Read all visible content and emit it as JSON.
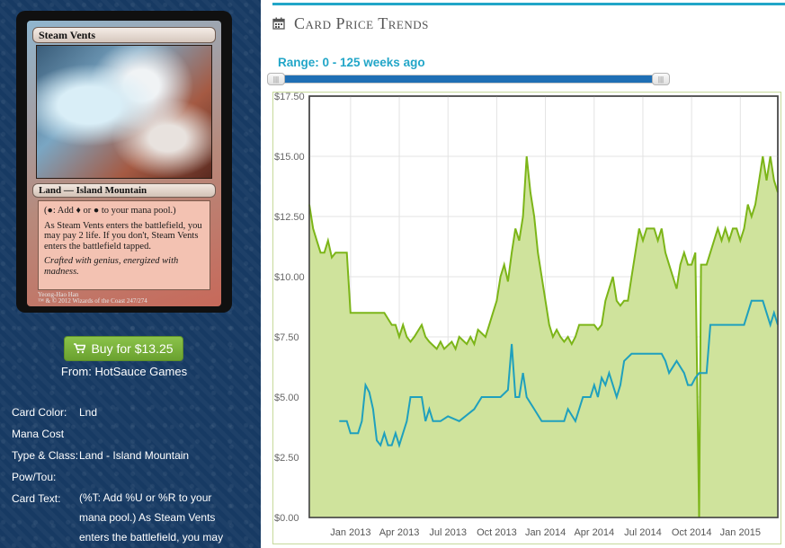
{
  "card": {
    "name": "Steam Vents",
    "type_line": "Land — Island Mountain",
    "rules_text": "(●: Add ♦ or ● to your mana pool.)",
    "rules_text_2": "As Steam Vents enters the battlefield, you may pay 2 life. If you don't, Steam Vents enters the battlefield tapped.",
    "flavor": "Crafted with genius, energized with madness.",
    "artist": "Yeong-Hao Han",
    "footer": "™ & © 2012 Wizards of the Coast  247/274"
  },
  "buy": {
    "label": "Buy for $13.25",
    "from": "From: HotSauce Games",
    "icon": "shopping-cart-icon"
  },
  "details": [
    {
      "label": "Card Color:",
      "value": "Lnd"
    },
    {
      "label": "Mana Cost",
      "value": ""
    },
    {
      "label": "Type & Class:",
      "value": "Land - Island Mountain"
    },
    {
      "label": "Pow/Tou:",
      "value": ""
    },
    {
      "label": "Card Text:",
      "value": "(%T: Add %U or %R to your mana pool.) As Steam Vents enters the battlefield, you may"
    }
  ],
  "section": {
    "title": "Card Price Trends",
    "icon": "calendar-icon"
  },
  "range": {
    "label": "Range: 0 - 125 weeks ago",
    "min": 0,
    "max": 125
  },
  "colors": {
    "accent": "#22a6c8",
    "green_line": "#7cb518",
    "green_fill": "#cfe39c",
    "blue_line": "#1fa0bd",
    "button": "#7ab53a",
    "panel": "#173a63"
  },
  "chart_data": {
    "type": "area",
    "xlabels": [
      "Jan 2013",
      "Apr 2013",
      "Jul 2013",
      "Oct 2013",
      "Jan 2014",
      "Apr 2014",
      "Jul 2014",
      "Oct 2014",
      "Jan 2015"
    ],
    "yticks": [
      "$17.50",
      "$15.00",
      "$12.50",
      "$10.00",
      "$7.50",
      "$5.00",
      "$2.50",
      "$0.00"
    ],
    "ylim": [
      0,
      17.5
    ],
    "xlim": [
      0,
      125
    ],
    "grid": true,
    "series": [
      {
        "points": [
          [
            0,
            13.0
          ],
          [
            1,
            12.0
          ],
          [
            2,
            11.5
          ],
          [
            3,
            11.0
          ],
          [
            4,
            11.0
          ],
          [
            5,
            11.5
          ],
          [
            6,
            10.8
          ],
          [
            7,
            11.0
          ],
          [
            8,
            11.0
          ],
          [
            9,
            11.0
          ],
          [
            10,
            11.0
          ],
          [
            11,
            8.5
          ],
          [
            14,
            8.5
          ],
          [
            17,
            8.5
          ],
          [
            20,
            8.5
          ],
          [
            22,
            8.0
          ],
          [
            23,
            8.0
          ],
          [
            24,
            7.5
          ],
          [
            25,
            8.0
          ],
          [
            26,
            7.5
          ],
          [
            27,
            7.3
          ],
          [
            28,
            7.5
          ],
          [
            30,
            8.0
          ],
          [
            31,
            7.5
          ],
          [
            32,
            7.3
          ],
          [
            34,
            7.0
          ],
          [
            35,
            7.3
          ],
          [
            36,
            7.0
          ],
          [
            38,
            7.3
          ],
          [
            39,
            7.0
          ],
          [
            40,
            7.5
          ],
          [
            42,
            7.2
          ],
          [
            43,
            7.5
          ],
          [
            44,
            7.2
          ],
          [
            45,
            7.8
          ],
          [
            47,
            7.5
          ],
          [
            48,
            8.0
          ],
          [
            49,
            8.5
          ],
          [
            50,
            9.0
          ],
          [
            51,
            10.0
          ],
          [
            52,
            10.5
          ],
          [
            53,
            9.8
          ],
          [
            54,
            11.0
          ],
          [
            55,
            12.0
          ],
          [
            56,
            11.5
          ],
          [
            57,
            12.5
          ],
          [
            58,
            15.0
          ],
          [
            59,
            13.5
          ],
          [
            60,
            12.5
          ],
          [
            61,
            11.0
          ],
          [
            62,
            10.0
          ],
          [
            63,
            9.0
          ],
          [
            64,
            8.0
          ],
          [
            65,
            7.5
          ],
          [
            66,
            7.8
          ],
          [
            67,
            7.5
          ],
          [
            68,
            7.3
          ],
          [
            69,
            7.5
          ],
          [
            70,
            7.2
          ],
          [
            71,
            7.5
          ],
          [
            72,
            8.0
          ],
          [
            74,
            8.0
          ],
          [
            76,
            8.0
          ],
          [
            77,
            7.8
          ],
          [
            78,
            8.0
          ],
          [
            79,
            9.0
          ],
          [
            80,
            9.5
          ],
          [
            81,
            10.0
          ],
          [
            82,
            9.0
          ],
          [
            83,
            8.8
          ],
          [
            84,
            9.0
          ],
          [
            85,
            9.0
          ],
          [
            86,
            10.0
          ],
          [
            87,
            11.0
          ],
          [
            88,
            12.0
          ],
          [
            89,
            11.5
          ],
          [
            90,
            12.0
          ],
          [
            92,
            12.0
          ],
          [
            93,
            11.5
          ],
          [
            94,
            12.0
          ],
          [
            95,
            11.0
          ],
          [
            96,
            10.5
          ],
          [
            97,
            10.0
          ],
          [
            98,
            9.5
          ],
          [
            99,
            10.5
          ],
          [
            100,
            11.0
          ],
          [
            101,
            10.5
          ],
          [
            102,
            10.5
          ],
          [
            103,
            11.0
          ],
          [
            104,
            0.0
          ],
          [
            104.5,
            10.5
          ],
          [
            106,
            10.5
          ],
          [
            108,
            11.5
          ],
          [
            109,
            12.0
          ],
          [
            110,
            11.5
          ],
          [
            111,
            12.0
          ],
          [
            112,
            11.5
          ],
          [
            113,
            12.0
          ],
          [
            114,
            12.0
          ],
          [
            115,
            11.5
          ],
          [
            116,
            12.0
          ],
          [
            117,
            13.0
          ],
          [
            118,
            12.5
          ],
          [
            119,
            13.0
          ],
          [
            120,
            14.0
          ],
          [
            121,
            15.0
          ],
          [
            122,
            14.0
          ],
          [
            123,
            15.0
          ],
          [
            124,
            14.0
          ],
          [
            125,
            13.5
          ]
        ]
      },
      {
        "points": [
          [
            8,
            4.0
          ],
          [
            10,
            4.0
          ],
          [
            11,
            3.5
          ],
          [
            13,
            3.5
          ],
          [
            14,
            4.0
          ],
          [
            15,
            5.5
          ],
          [
            16,
            5.2
          ],
          [
            17,
            4.5
          ],
          [
            18,
            3.2
          ],
          [
            19,
            3.0
          ],
          [
            20,
            3.5
          ],
          [
            21,
            3.0
          ],
          [
            22,
            3.0
          ],
          [
            23,
            3.5
          ],
          [
            24,
            3.0
          ],
          [
            26,
            4.0
          ],
          [
            27,
            5.0
          ],
          [
            30,
            5.0
          ],
          [
            31,
            4.0
          ],
          [
            32,
            4.5
          ],
          [
            33,
            4.0
          ],
          [
            35,
            4.0
          ],
          [
            37,
            4.2
          ],
          [
            40,
            4.0
          ],
          [
            44,
            4.5
          ],
          [
            46,
            5.0
          ],
          [
            49,
            5.0
          ],
          [
            51,
            5.0
          ],
          [
            53,
            5.3
          ],
          [
            54,
            7.2
          ],
          [
            55,
            5.0
          ],
          [
            56,
            5.0
          ],
          [
            57,
            6.0
          ],
          [
            58,
            5.0
          ],
          [
            60,
            4.5
          ],
          [
            62,
            4.0
          ],
          [
            64,
            4.0
          ],
          [
            66,
            4.0
          ],
          [
            68,
            4.0
          ],
          [
            69,
            4.5
          ],
          [
            71,
            4.0
          ],
          [
            73,
            5.0
          ],
          [
            75,
            5.0
          ],
          [
            76,
            5.5
          ],
          [
            77,
            5.0
          ],
          [
            78,
            5.8
          ],
          [
            79,
            5.5
          ],
          [
            80,
            6.0
          ],
          [
            82,
            5.0
          ],
          [
            83,
            5.5
          ],
          [
            84,
            6.5
          ],
          [
            86,
            6.8
          ],
          [
            88,
            6.8
          ],
          [
            90,
            6.8
          ],
          [
            92,
            6.8
          ],
          [
            94,
            6.8
          ],
          [
            95,
            6.5
          ],
          [
            96,
            6.0
          ],
          [
            98,
            6.5
          ],
          [
            100,
            6.0
          ],
          [
            101,
            5.5
          ],
          [
            102,
            5.5
          ],
          [
            103,
            5.8
          ],
          [
            104,
            6.0
          ],
          [
            106,
            6.0
          ],
          [
            107,
            8.0
          ],
          [
            110,
            8.0
          ],
          [
            113,
            8.0
          ],
          [
            116,
            8.0
          ],
          [
            118,
            9.0
          ],
          [
            121,
            9.0
          ],
          [
            122,
            8.5
          ],
          [
            123,
            8.0
          ],
          [
            124,
            8.5
          ],
          [
            125,
            8.0
          ]
        ]
      }
    ]
  }
}
